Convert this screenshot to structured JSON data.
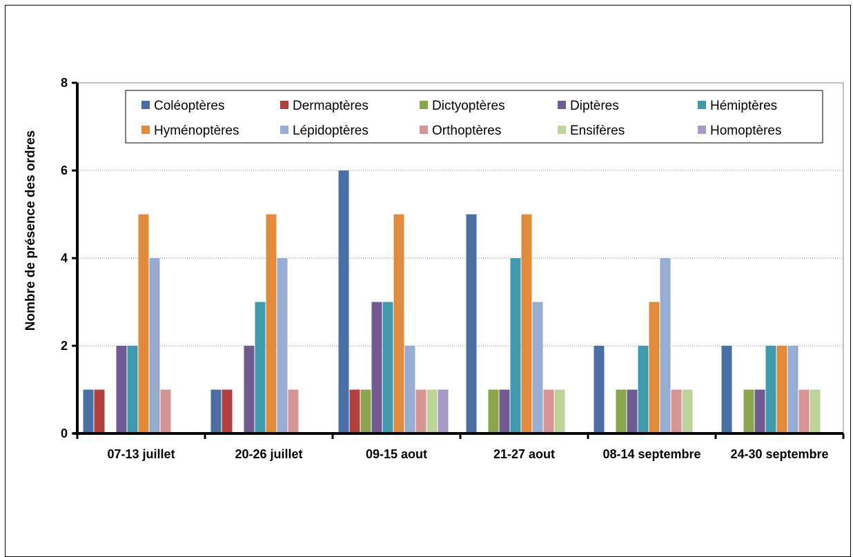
{
  "chart_data": {
    "type": "bar",
    "title": "",
    "xlabel": "",
    "ylabel": "Nombre de présence des ordres",
    "ylim": [
      0,
      8
    ],
    "yticks": [
      0,
      2,
      4,
      6,
      8
    ],
    "grid": true,
    "legend_position": "top",
    "categories": [
      "07-13 juillet",
      "20-26 juillet",
      "09-15 aout",
      "21-27 aout",
      "08-14 septembre",
      "24-30 septembre"
    ],
    "series": [
      {
        "name": "Coléoptères",
        "color": "#4a6fa5",
        "values": [
          1,
          1,
          6,
          5,
          2,
          2
        ]
      },
      {
        "name": "Dermaptères",
        "color": "#b0413e",
        "values": [
          1,
          1,
          1,
          0,
          0,
          0
        ]
      },
      {
        "name": "Dictyoptères",
        "color": "#8aa64d",
        "values": [
          0,
          0,
          1,
          1,
          1,
          1
        ]
      },
      {
        "name": "Diptères",
        "color": "#6f5a92",
        "values": [
          2,
          2,
          3,
          1,
          1,
          1
        ]
      },
      {
        "name": "Hémiptères",
        "color": "#3f9aae",
        "values": [
          2,
          3,
          3,
          4,
          2,
          2
        ]
      },
      {
        "name": "Hyménoptères",
        "color": "#e08a3c",
        "values": [
          5,
          5,
          5,
          5,
          3,
          2
        ]
      },
      {
        "name": "Lépidoptères",
        "color": "#97acd1",
        "values": [
          4,
          4,
          2,
          3,
          4,
          2
        ]
      },
      {
        "name": "Orthoptères",
        "color": "#d69594",
        "values": [
          1,
          1,
          1,
          1,
          1,
          1
        ]
      },
      {
        "name": "Ensifères",
        "color": "#bcd39a",
        "values": [
          0,
          0,
          1,
          1,
          1,
          1
        ]
      },
      {
        "name": "Homoptères",
        "color": "#a79bc5",
        "values": [
          0,
          0,
          1,
          0,
          0,
          0
        ]
      }
    ]
  }
}
